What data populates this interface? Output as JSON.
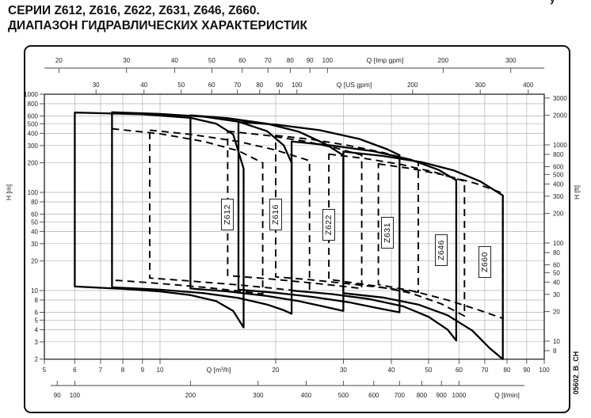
{
  "title": {
    "line1": "СЕРИИ Z612, Z616, Z622, Z631, Z646, Z660.",
    "line2": "ДИАПАЗОН ГИДРАВЛИЧЕСКИХ ХАРАКТЕРИСТИК"
  },
  "corner_fragment": "у",
  "watermark": "05602_B_CH",
  "colors": {
    "curve": "#000000",
    "grid": "#b2b2b2",
    "axis": "#444444",
    "frame": "#222222"
  },
  "chart_data": {
    "type": "area",
    "subtype": "pump-range-envelopes",
    "title": "Диапазон гидравлических характеристик серий Z612–Z660",
    "x_scale": "log",
    "y_scale": "log",
    "q_range_m3h": [
      5,
      100
    ],
    "h_range_m": [
      2,
      1000
    ],
    "grid": "on",
    "axes": {
      "top_outer": {
        "label": "Q [Imp gpm]",
        "unit_to_m3h": 0.272765,
        "ticks": [
          20,
          30,
          40,
          50,
          60,
          70,
          80,
          90,
          100,
          200,
          300
        ]
      },
      "top_inner": {
        "label": "Q [US gpm]",
        "unit_to_m3h": 0.227125,
        "ticks": [
          30,
          40,
          50,
          60,
          70,
          80,
          90,
          100,
          200,
          300,
          400
        ]
      },
      "bottom_inner": {
        "label": "Q [m³/h]",
        "unit_to_m3h": 1,
        "ticks": [
          5,
          6,
          7,
          8,
          9,
          10,
          20,
          30,
          40,
          50,
          60,
          70,
          80,
          90,
          100
        ]
      },
      "bottom_outer": {
        "label": "Q [l/min]",
        "unit_to_m3h": 0.06,
        "ticks": [
          90,
          100,
          200,
          300,
          400,
          500,
          600,
          700,
          800,
          900,
          1000
        ]
      },
      "left": {
        "label": "H [m]",
        "ticks": [
          1000,
          800,
          600,
          500,
          400,
          300,
          200,
          100,
          80,
          60,
          50,
          40,
          30,
          20,
          10,
          8,
          6,
          5,
          4,
          3,
          2
        ]
      },
      "right": {
        "label": "H [ft]",
        "m_per_ft": 0.3048,
        "ticks": [
          3000,
          2000,
          1000,
          800,
          600,
          500,
          400,
          300,
          200,
          100,
          80,
          60,
          50,
          40,
          30,
          20,
          10,
          8
        ]
      }
    },
    "series": [
      {
        "label": "Z612",
        "label_pos_qh": [
          15,
          59
        ],
        "solid": {
          "top": [
            [
              6,
              650
            ],
            [
              9,
              625
            ],
            [
              12,
              575
            ],
            [
              14,
              500
            ],
            [
              15.5,
              390
            ],
            [
              16.5,
              175
            ]
          ],
          "bottom": [
            [
              6,
              11
            ],
            [
              8,
              10.4
            ],
            [
              10,
              9.8
            ],
            [
              12,
              9.0
            ],
            [
              14,
              7.8
            ],
            [
              15.5,
              6.2
            ],
            [
              16.5,
              4.2
            ]
          ]
        },
        "dashed": {
          "top": [
            [
              7.5,
              445
            ],
            [
              10,
              395
            ],
            [
              13,
              330
            ],
            [
              16,
              265
            ],
            [
              18.5,
              200
            ]
          ],
          "bottom": [
            [
              7.5,
              12.8
            ],
            [
              10,
              11.8
            ],
            [
              13,
              10.8
            ],
            [
              16,
              9.9
            ],
            [
              18.5,
              9.2
            ]
          ]
        }
      },
      {
        "label": "Z616",
        "label_pos_qh": [
          20,
          59
        ],
        "solid": {
          "top": [
            [
              7.5,
              655
            ],
            [
              10,
              630
            ],
            [
              13,
              590
            ],
            [
              16,
              525
            ],
            [
              19,
              420
            ],
            [
              21,
              300
            ],
            [
              22,
              200
            ]
          ],
          "bottom": [
            [
              7.5,
              10.8
            ],
            [
              10,
              10.2
            ],
            [
              13,
              9.4
            ],
            [
              16,
              8.4
            ],
            [
              19,
              7.2
            ],
            [
              21,
              6.3
            ],
            [
              22,
              5.8
            ]
          ]
        },
        "dashed": {
          "top": [
            [
              9.4,
              430
            ],
            [
              12,
              390
            ],
            [
              16,
              330
            ],
            [
              20,
              270
            ],
            [
              24.5,
              210
            ]
          ],
          "bottom": [
            [
              9.4,
              13.4
            ],
            [
              12,
              12.5
            ],
            [
              16,
              11.4
            ],
            [
              20,
              10.5
            ],
            [
              24.5,
              9.6
            ]
          ]
        }
      },
      {
        "label": "Z622",
        "label_pos_qh": [
          27.5,
          47
        ],
        "solid": {
          "top": [
            [
              12,
              610
            ],
            [
              15,
              570
            ],
            [
              19,
              500
            ],
            [
              23,
              415
            ],
            [
              27,
              310
            ],
            [
              30,
              238
            ]
          ],
          "bottom": [
            [
              12,
              10.5
            ],
            [
              15,
              9.8
            ],
            [
              19,
              8.8
            ],
            [
              23,
              7.8
            ],
            [
              27,
              6.8
            ],
            [
              30,
              6.2
            ]
          ]
        },
        "dashed": {
          "top": [
            [
              15,
              420
            ],
            [
              19,
              380
            ],
            [
              24,
              330
            ],
            [
              29,
              280
            ],
            [
              33.5,
              240
            ]
          ],
          "bottom": [
            [
              15,
              14.2
            ],
            [
              19,
              13.2
            ],
            [
              24,
              12.1
            ],
            [
              29,
              11.2
            ],
            [
              33.5,
              10.5
            ]
          ]
        }
      },
      {
        "label": "Z631",
        "label_pos_qh": [
          39,
          39
        ],
        "solid": {
          "top": [
            [
              16,
              520
            ],
            [
              20,
              490
            ],
            [
              26,
              430
            ],
            [
              33,
              350
            ],
            [
              39,
              275
            ],
            [
              42,
              240
            ]
          ],
          "bottom": [
            [
              16,
              10.2
            ],
            [
              20,
              9.5
            ],
            [
              25,
              8.6
            ],
            [
              31,
              7.6
            ],
            [
              37,
              6.6
            ],
            [
              42,
              6.0
            ]
          ]
        },
        "dashed": {
          "top": [
            [
              20,
              380
            ],
            [
              25,
              345
            ],
            [
              31,
              300
            ],
            [
              38,
              255
            ],
            [
              47,
              205
            ]
          ],
          "bottom": [
            [
              20,
              13.8
            ],
            [
              25,
              12.8
            ],
            [
              31,
              11.7
            ],
            [
              38,
              10.7
            ],
            [
              47,
              9.6
            ]
          ]
        }
      },
      {
        "label": "Z646",
        "label_pos_qh": [
          54,
          26
        ],
        "solid": {
          "top": [
            [
              22,
              330
            ],
            [
              28,
              300
            ],
            [
              36,
              262
            ],
            [
              45,
              215
            ],
            [
              53,
              170
            ],
            [
              59,
              133
            ]
          ],
          "bottom": [
            [
              22,
              10
            ],
            [
              28,
              9.2
            ],
            [
              35,
              8.2
            ],
            [
              43,
              6.9
            ],
            [
              50,
              5.4
            ],
            [
              56,
              4.0
            ],
            [
              59,
              3.1
            ]
          ]
        },
        "dashed": {
          "top": [
            [
              27.5,
              245
            ],
            [
              34,
              222
            ],
            [
              42,
              194
            ],
            [
              52,
              160
            ],
            [
              62,
              130
            ]
          ],
          "bottom": [
            [
              27.5,
              13
            ],
            [
              36,
              11.2
            ],
            [
              45,
              9.4
            ],
            [
              54,
              7.3
            ],
            [
              62,
              5.5
            ]
          ]
        }
      },
      {
        "label": "Z660",
        "label_pos_qh": [
          70,
          19.5
        ],
        "solid": {
          "top": [
            [
              30,
              260
            ],
            [
              38,
              235
            ],
            [
              48,
              203
            ],
            [
              58,
              168
            ],
            [
              68,
              130
            ],
            [
              78,
              93
            ]
          ],
          "bottom": [
            [
              30,
              9.4
            ],
            [
              38,
              8.5
            ],
            [
              47,
              7.2
            ],
            [
              56,
              5.6
            ],
            [
              65,
              3.9
            ],
            [
              72,
              2.6
            ],
            [
              78,
              2.0
            ]
          ]
        },
        "dashed": {
          "top": [
            [
              37,
              195
            ],
            [
              45,
              175
            ],
            [
              55,
              150
            ],
            [
              66,
              124
            ],
            [
              78,
              98
            ]
          ],
          "bottom": [
            [
              37,
              11.5
            ],
            [
              46,
              9.8
            ],
            [
              56,
              8.0
            ],
            [
              67,
              6.4
            ],
            [
              78,
              5.2
            ]
          ]
        }
      }
    ]
  }
}
